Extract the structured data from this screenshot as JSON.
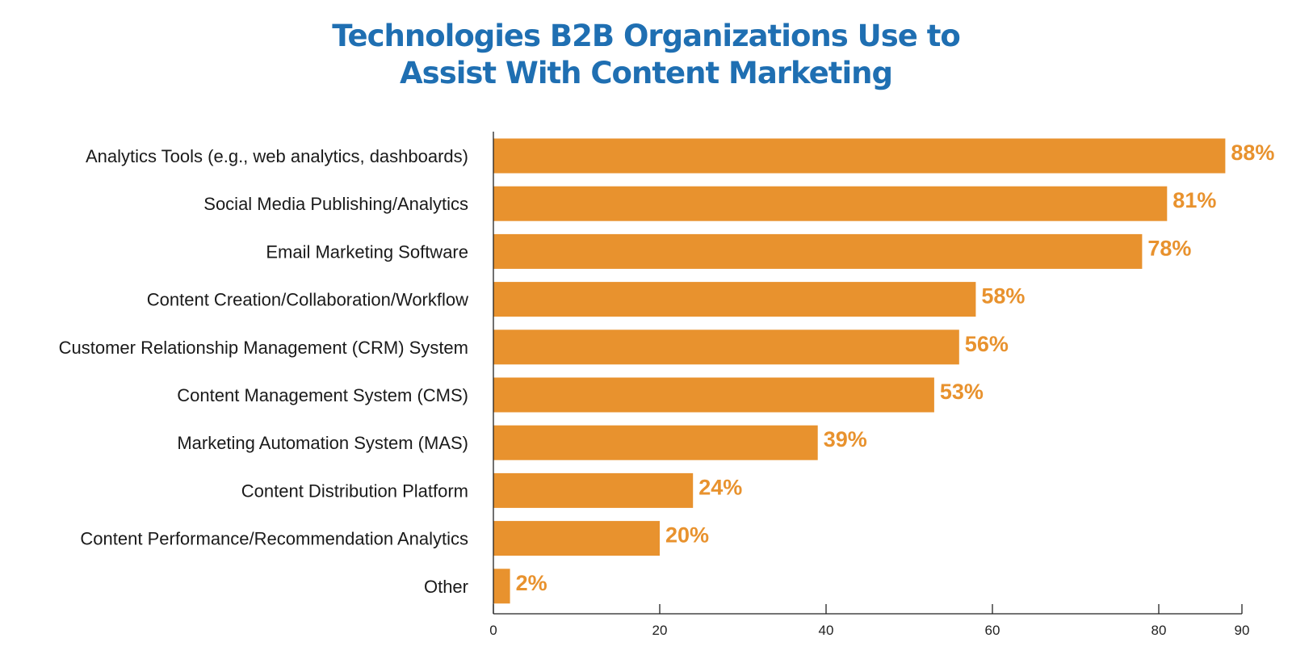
{
  "chart_data": {
    "type": "bar",
    "orientation": "horizontal",
    "title_lines": [
      "Technologies B2B Organizations Use to",
      "Assist With Content Marketing"
    ],
    "categories": [
      "Analytics Tools (e.g., web analytics, dashboards)",
      "Social Media Publishing/Analytics",
      "Email Marketing Software",
      "Content Creation/Collaboration/Workflow",
      "Customer Relationship Management (CRM) System",
      "Content Management System (CMS)",
      "Marketing Automation System (MAS)",
      "Content Distribution Platform",
      "Content Performance/Recommendation Analytics",
      "Other"
    ],
    "values": [
      88,
      81,
      78,
      58,
      56,
      53,
      39,
      24,
      20,
      2
    ],
    "value_labels": [
      "88%",
      "81%",
      "78%",
      "58%",
      "56%",
      "53%",
      "39%",
      "24%",
      "20%",
      "2%"
    ],
    "xlim": [
      0,
      90
    ],
    "xticks": [
      0,
      20,
      40,
      60,
      80,
      90
    ],
    "xtick_labels": [
      "0",
      "20",
      "40",
      "60",
      "80",
      "90"
    ],
    "grid": false,
    "legend": "none",
    "colors": {
      "bar": "#e8922e",
      "value_label": "#e8922e",
      "title": "#1f6fb2",
      "axis": "#222222"
    }
  }
}
